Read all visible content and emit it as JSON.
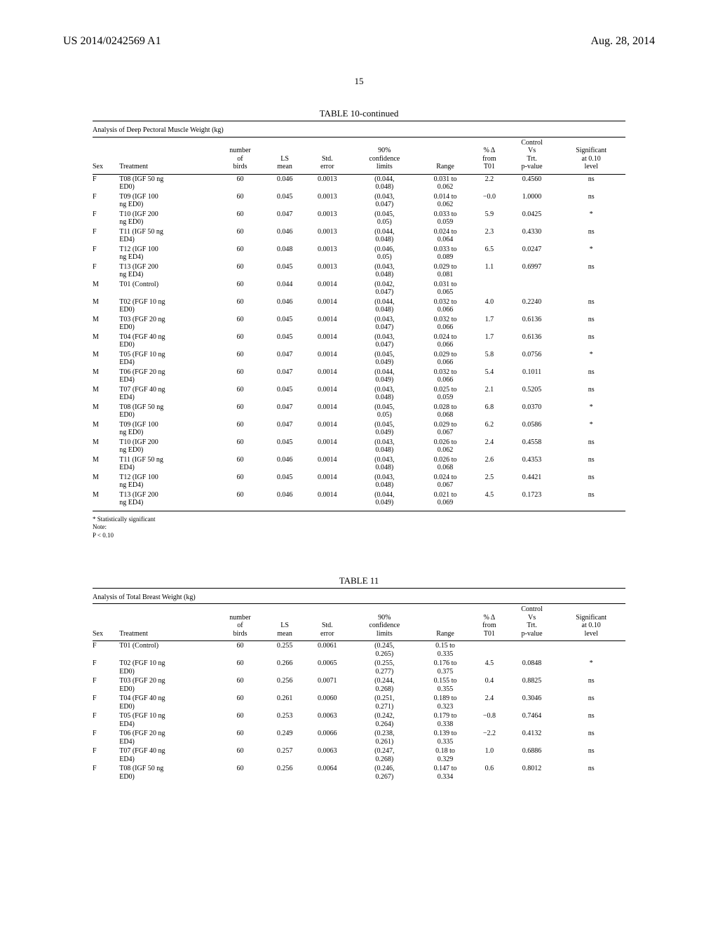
{
  "header": {
    "pub_number": "US 2014/0242569 A1",
    "date": "Aug. 28, 2014",
    "page_number": "15"
  },
  "table10": {
    "title": "TABLE 10-continued",
    "caption": "Analysis of Deep Pectoral Muscle Weight (kg)",
    "columns": [
      "Sex",
      "Treatment",
      "number of birds",
      "LS mean",
      "Std. error",
      "90% confidence limits",
      "Range",
      "% Δ from T01",
      "Control Vs Trt. p-value",
      "Significant at 0.10 level"
    ],
    "rows": [
      [
        "F",
        "T08 (IGF 50 ng ED0)",
        "60",
        "0.046",
        "0.0013",
        "(0.044, 0.048)",
        "0.031 to 0.062",
        "2.2",
        "0.4560",
        "ns"
      ],
      [
        "F",
        "T09 (IGF 100 ng ED0)",
        "60",
        "0.045",
        "0.0013",
        "(0.043, 0.047)",
        "0.014 to 0.062",
        "−0.0",
        "1.0000",
        "ns"
      ],
      [
        "F",
        "T10 (IGF 200 ng ED0)",
        "60",
        "0.047",
        "0.0013",
        "(0.045, 0.05)",
        "0.033 to 0.059",
        "5.9",
        "0.0425",
        "*"
      ],
      [
        "F",
        "T11 (IGF 50 ng ED4)",
        "60",
        "0.046",
        "0.0013",
        "(0.044, 0.048)",
        "0.024 to 0.064",
        "2.3",
        "0.4330",
        "ns"
      ],
      [
        "F",
        "T12 (IGF 100 ng ED4)",
        "60",
        "0.048",
        "0.0013",
        "(0.046, 0.05)",
        "0.033 to 0.089",
        "6.5",
        "0.0247",
        "*"
      ],
      [
        "F",
        "T13 (IGF 200 ng ED4)",
        "60",
        "0.045",
        "0.0013",
        "(0.043, 0.048)",
        "0.029 to 0.081",
        "1.1",
        "0.6997",
        "ns"
      ],
      [
        "M",
        "T01 (Control)",
        "60",
        "0.044",
        "0.0014",
        "(0.042, 0.047)",
        "0.031 to 0.065",
        "",
        "",
        ""
      ],
      [
        "M",
        "T02 (FGF 10 ng ED0)",
        "60",
        "0.046",
        "0.0014",
        "(0.044, 0.048)",
        "0.032 to 0.066",
        "4.0",
        "0.2240",
        "ns"
      ],
      [
        "M",
        "T03 (FGF 20 ng ED0)",
        "60",
        "0.045",
        "0.0014",
        "(0.043, 0.047)",
        "0.032 to 0.066",
        "1.7",
        "0.6136",
        "ns"
      ],
      [
        "M",
        "T04 (FGF 40 ng ED0)",
        "60",
        "0.045",
        "0.0014",
        "(0.043, 0.047)",
        "0.024 to 0.066",
        "1.7",
        "0.6136",
        "ns"
      ],
      [
        "M",
        "T05 (FGF 10 ng ED4)",
        "60",
        "0.047",
        "0.0014",
        "(0.045, 0.049)",
        "0.029 to 0.066",
        "5.8",
        "0.0756",
        "*"
      ],
      [
        "M",
        "T06 (FGF 20 ng ED4)",
        "60",
        "0.047",
        "0.0014",
        "(0.044, 0.049)",
        "0.032 to 0.066",
        "5.4",
        "0.1011",
        "ns"
      ],
      [
        "M",
        "T07 (FGF 40 ng ED4)",
        "60",
        "0.045",
        "0.0014",
        "(0.043, 0.048)",
        "0.025 to 0.059",
        "2.1",
        "0.5205",
        "ns"
      ],
      [
        "M",
        "T08 (IGF 50 ng ED0)",
        "60",
        "0.047",
        "0.0014",
        "(0.045, 0.05)",
        "0.028 to 0.068",
        "6.8",
        "0.0370",
        "*"
      ],
      [
        "M",
        "T09 (IGF 100 ng ED0)",
        "60",
        "0.047",
        "0.0014",
        "(0.045, 0.049)",
        "0.029 to 0.067",
        "6.2",
        "0.0586",
        "*"
      ],
      [
        "M",
        "T10 (IGF 200 ng ED0)",
        "60",
        "0.045",
        "0.0014",
        "(0.043, 0.048)",
        "0.026 to 0.062",
        "2.4",
        "0.4558",
        "ns"
      ],
      [
        "M",
        "T11 (IGF 50 ng ED4)",
        "60",
        "0.046",
        "0.0014",
        "(0.043, 0.048)",
        "0.026 to 0.068",
        "2.6",
        "0.4353",
        "ns"
      ],
      [
        "M",
        "T12 (IGF 100 ng ED4)",
        "60",
        "0.045",
        "0.0014",
        "(0.043, 0.048)",
        "0.024 to 0.067",
        "2.5",
        "0.4421",
        "ns"
      ],
      [
        "M",
        "T13 (IGF 200 ng ED4)",
        "60",
        "0.046",
        "0.0014",
        "(0.044, 0.049)",
        "0.021 to 0.069",
        "4.5",
        "0.1723",
        "ns"
      ]
    ],
    "footnotes": [
      "* Statistically significant",
      "Note:",
      "P < 0.10"
    ]
  },
  "table11": {
    "title": "TABLE 11",
    "caption": "Analysis of Total Breast Weight (kg)",
    "columns": [
      "Sex",
      "Treatment",
      "number of birds",
      "LS mean",
      "Std. error",
      "90% confidence limits",
      "Range",
      "% Δ from T01",
      "Control Vs Trt. p-value",
      "Significant at 0.10 level"
    ],
    "rows": [
      [
        "F",
        "T01 (Control)",
        "60",
        "0.255",
        "0.0061",
        "(0.245, 0.265)",
        "0.15 to 0.335",
        "",
        "",
        ""
      ],
      [
        "F",
        "T02 (FGF 10 ng ED0)",
        "60",
        "0.266",
        "0.0065",
        "(0.255, 0.277)",
        "0.176 to 0.375",
        "4.5",
        "0.0848",
        "*"
      ],
      [
        "F",
        "T03 (FGF 20 ng ED0)",
        "60",
        "0.256",
        "0.0071",
        "(0.244, 0.268)",
        "0.155 to 0.355",
        "0.4",
        "0.8825",
        "ns"
      ],
      [
        "F",
        "T04 (FGF 40 ng ED0)",
        "60",
        "0.261",
        "0.0060",
        "(0.251, 0.271)",
        "0.189 to 0.323",
        "2.4",
        "0.3046",
        "ns"
      ],
      [
        "F",
        "T05 (FGF 10 ng ED4)",
        "60",
        "0.253",
        "0.0063",
        "(0.242, 0.264)",
        "0.179 to 0.338",
        "−0.8",
        "0.7464",
        "ns"
      ],
      [
        "F",
        "T06 (FGF 20 ng ED4)",
        "60",
        "0.249",
        "0.0066",
        "(0.238, 0.261)",
        "0.139 to 0.335",
        "−2.2",
        "0.4132",
        "ns"
      ],
      [
        "F",
        "T07 (FGF 40 ng ED4)",
        "60",
        "0.257",
        "0.0063",
        "(0.247, 0.268)",
        "0.18 to 0.329",
        "1.0",
        "0.6886",
        "ns"
      ],
      [
        "F",
        "T08 (IGF 50 ng ED0)",
        "60",
        "0.256",
        "0.0064",
        "(0.246, 0.267)",
        "0.147 to 0.334",
        "0.6",
        "0.8012",
        "ns"
      ]
    ]
  }
}
